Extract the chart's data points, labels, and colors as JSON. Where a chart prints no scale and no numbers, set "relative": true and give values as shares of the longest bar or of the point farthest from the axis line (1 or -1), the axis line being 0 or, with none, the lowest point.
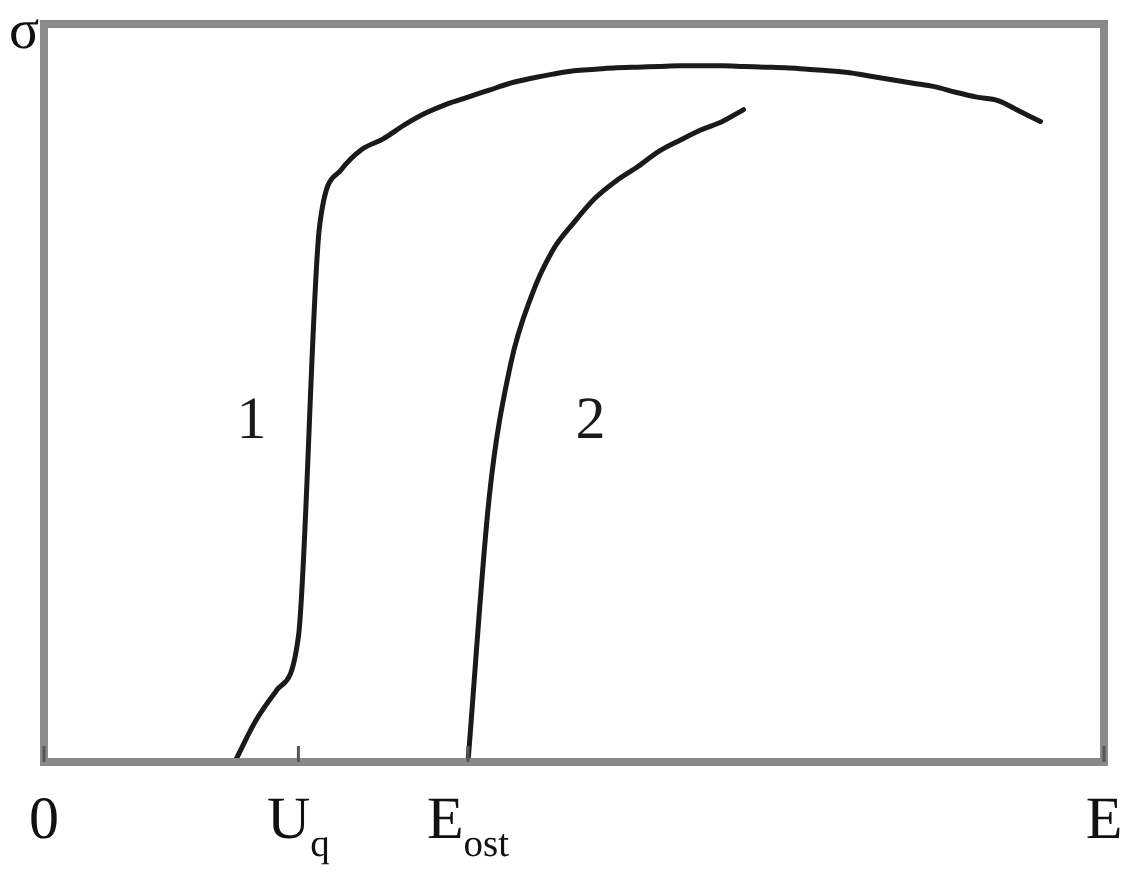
{
  "chart_data": {
    "type": "line",
    "relative": true,
    "ylabel": "σ",
    "categories": [
      "0",
      null,
      null,
      null,
      null,
      null,
      null,
      null,
      null,
      null,
      null,
      null,
      "U$_{q}$",
      null,
      null,
      null,
      null,
      null,
      null,
      null,
      "E$_{ost}$",
      null,
      null,
      null,
      null,
      null,
      null,
      null,
      null,
      null,
      null,
      null,
      null,
      null,
      null,
      null,
      null,
      null,
      null,
      null,
      null,
      null,
      null,
      null,
      null,
      null,
      null,
      null,
      null,
      null,
      "E"
    ],
    "grid": false,
    "legend": false,
    "marker": "none",
    "line_style": "solid",
    "series": [
      {
        "name": "1",
        "color": "#1a1a1a",
        "values": [
          null,
          null,
          null,
          null,
          null,
          null,
          null,
          null,
          null,
          0,
          0.06,
          0.104,
          0.18,
          0.77,
          0.85,
          0.88,
          0.895,
          0.915,
          0.932,
          0.945,
          0.955,
          0.965,
          0.975,
          0.982,
          0.988,
          0.993,
          0.995,
          0.997,
          0.998,
          0.999,
          1,
          1,
          1,
          0.999,
          0.998,
          0.997,
          0.995,
          0.993,
          0.99,
          0.985,
          0.98,
          0.975,
          0.97,
          0.962,
          0.955,
          0.95,
          0.935,
          0.92,
          null,
          null,
          null
        ]
      },
      {
        "name": "2",
        "color": "#1a1a1a",
        "values": [
          null,
          null,
          null,
          null,
          null,
          null,
          null,
          null,
          null,
          null,
          null,
          null,
          null,
          null,
          null,
          null,
          null,
          null,
          null,
          null,
          0,
          0.38,
          0.57,
          0.67,
          0.735,
          0.775,
          0.81,
          0.835,
          0.855,
          0.877,
          0.893,
          0.908,
          0.92,
          0.937,
          null,
          null,
          null,
          null,
          null,
          null,
          null,
          null,
          null,
          null,
          null,
          null,
          null,
          null,
          null,
          null,
          null
        ]
      }
    ]
  }
}
